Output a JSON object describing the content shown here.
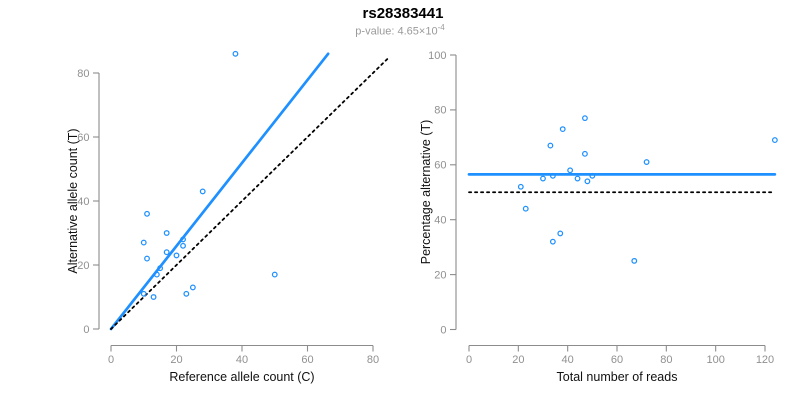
{
  "header": {
    "title": "rs28383441",
    "pvalue_base": "p-value: 4.65×10",
    "pvalue_exponent": "-4"
  },
  "colors": {
    "accent_blue": "#1E90FF",
    "axis_gray": "#8c8c8c",
    "tick_label_gray": "#909090",
    "axis_title_color": "#111111",
    "dotted_black": "#000000"
  },
  "chart_data": [
    {
      "type": "scatter",
      "name": "allele-counts-scatter",
      "xlabel": "Reference allele count (C)",
      "ylabel": "Alternative allele count (T)",
      "xlim": [
        0,
        80
      ],
      "ylim": [
        0,
        80
      ],
      "xticks": [
        0,
        20,
        40,
        60,
        80
      ],
      "yticks": [
        0,
        20,
        40,
        60,
        80
      ],
      "grid": false,
      "points": [
        [
          38,
          86
        ],
        [
          28,
          43
        ],
        [
          11,
          36
        ],
        [
          17,
          30
        ],
        [
          10,
          27
        ],
        [
          22,
          28
        ],
        [
          22,
          26
        ],
        [
          17,
          24
        ],
        [
          20,
          23
        ],
        [
          11,
          22
        ],
        [
          15,
          19
        ],
        [
          14,
          17
        ],
        [
          50,
          17
        ],
        [
          25,
          13
        ],
        [
          23,
          11
        ],
        [
          10,
          11
        ],
        [
          13,
          10
        ]
      ],
      "lines": [
        {
          "name": "fit-line",
          "role": "fitted slope ~1.3 through origin",
          "color": "#1E90FF",
          "width": 2.7,
          "dash": "",
          "from": [
            0,
            0
          ],
          "to": [
            66.3,
            86
          ]
        },
        {
          "name": "identity-line",
          "role": "y = x reference",
          "color": "#000000",
          "width": 1.8,
          "dash": "2.2 3.8",
          "from": [
            0,
            0
          ],
          "to": [
            85,
            85
          ]
        }
      ]
    },
    {
      "type": "scatter",
      "name": "percentage-vs-reads-scatter",
      "xlabel": "Total number of reads",
      "ylabel": "Percentage alternative (T)",
      "xlim": [
        0,
        120
      ],
      "ylim": [
        0,
        100
      ],
      "xticks": [
        0,
        20,
        40,
        60,
        80,
        100,
        120
      ],
      "yticks": [
        0,
        20,
        40,
        60,
        80,
        100
      ],
      "grid": false,
      "points": [
        [
          47,
          77
        ],
        [
          38,
          73
        ],
        [
          124,
          69
        ],
        [
          33,
          67
        ],
        [
          47,
          64
        ],
        [
          72,
          61
        ],
        [
          41,
          58
        ],
        [
          50,
          56
        ],
        [
          34,
          56
        ],
        [
          44,
          55
        ],
        [
          30,
          55
        ],
        [
          48,
          54
        ],
        [
          21,
          52
        ],
        [
          23,
          44
        ],
        [
          37,
          35
        ],
        [
          34,
          32
        ],
        [
          67,
          25
        ]
      ],
      "lines": [
        {
          "name": "mean-line",
          "role": "estimated mean percentage ~56.5",
          "color": "#1E90FF",
          "width": 2.7,
          "dash": "",
          "from": [
            0,
            56.5
          ],
          "to": [
            124,
            56.5
          ]
        },
        {
          "name": "null-line",
          "role": "50% reference",
          "color": "#000000",
          "width": 1.8,
          "dash": "2.2 3.8",
          "from": [
            0,
            50
          ],
          "to": [
            123,
            50
          ]
        }
      ]
    }
  ]
}
